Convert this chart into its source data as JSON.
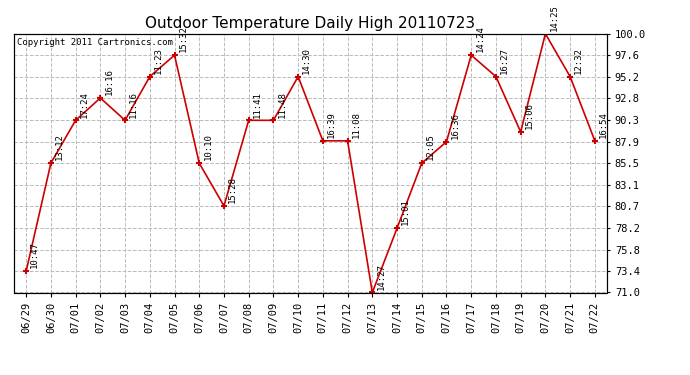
{
  "title": "Outdoor Temperature Daily High 20110723",
  "copyright": "Copyright 2011 Cartronics.com",
  "dates": [
    "06/29",
    "06/30",
    "07/01",
    "07/02",
    "07/03",
    "07/04",
    "07/05",
    "07/06",
    "07/07",
    "07/08",
    "07/09",
    "07/10",
    "07/11",
    "07/12",
    "07/13",
    "07/14",
    "07/15",
    "07/16",
    "07/17",
    "07/18",
    "07/19",
    "07/20",
    "07/21",
    "07/22"
  ],
  "temps": [
    73.4,
    85.5,
    90.3,
    92.8,
    90.3,
    95.2,
    97.6,
    85.5,
    80.7,
    90.3,
    90.3,
    95.2,
    88.0,
    88.0,
    71.0,
    78.2,
    85.5,
    87.9,
    97.6,
    95.2,
    89.0,
    100.0,
    95.2,
    88.0
  ],
  "annotations": [
    "10:47",
    "13:12",
    "17:24",
    "16:16",
    "11:16",
    "11:23",
    "15:32",
    "10:10",
    "15:28",
    "11:41",
    "11:48",
    "14:30",
    "16:39",
    "11:08",
    "14:27",
    "15:01",
    "12:05",
    "16:36",
    "14:24",
    "16:27",
    "15:06",
    "14:25",
    "12:32",
    "16:54"
  ],
  "line_color": "#cc0000",
  "marker_color": "#cc0000",
  "bg_color": "#ffffff",
  "grid_color": "#bbbbbb",
  "ylim": [
    71.0,
    100.0
  ],
  "yticks": [
    71.0,
    73.4,
    75.8,
    78.2,
    80.7,
    83.1,
    85.5,
    87.9,
    90.3,
    92.8,
    95.2,
    97.6,
    100.0
  ],
  "title_fontsize": 11,
  "annotation_fontsize": 6.5,
  "copyright_fontsize": 6.5,
  "tick_fontsize": 7.5
}
